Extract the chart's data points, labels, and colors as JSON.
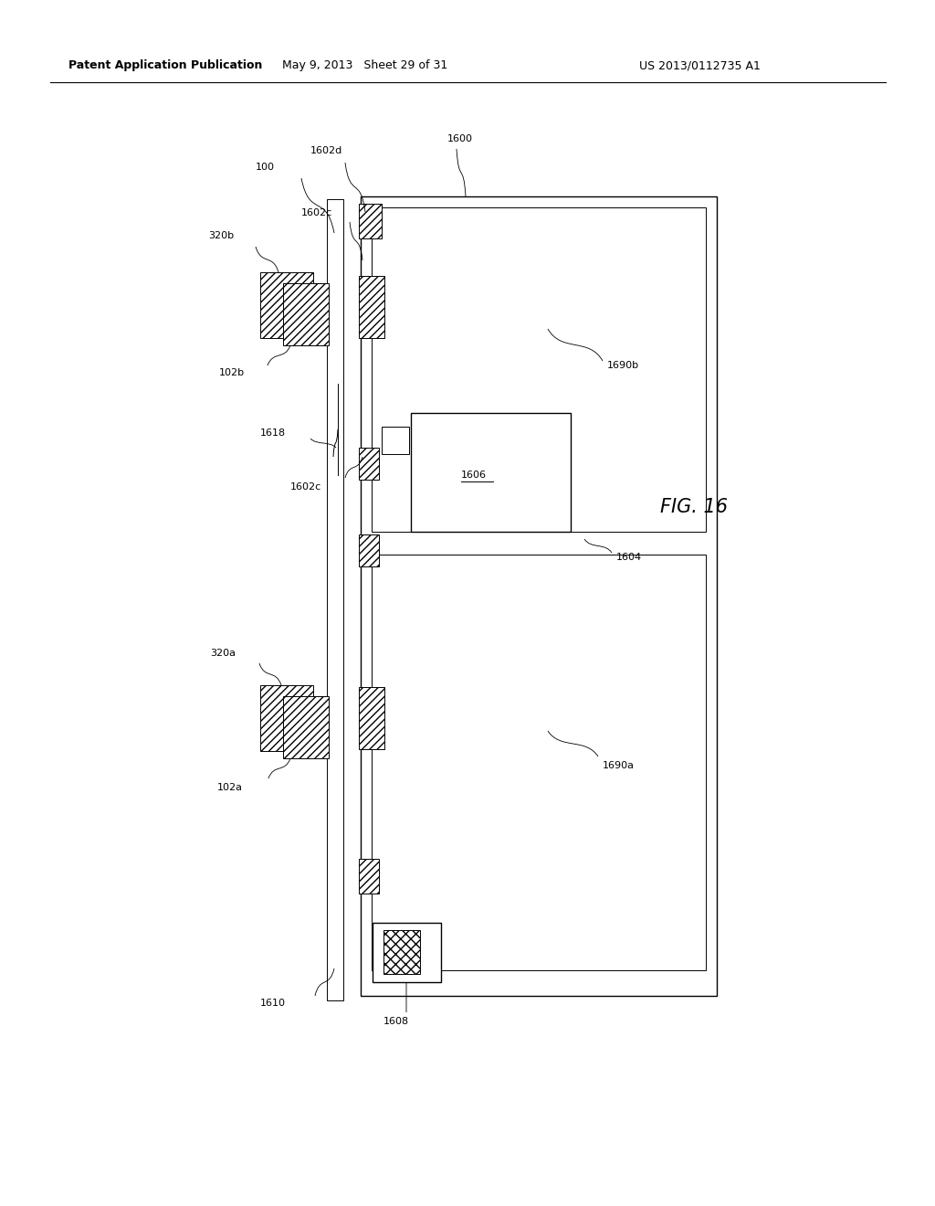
{
  "header_left": "Patent Application Publication",
  "header_center": "May 9, 2013   Sheet 29 of 31",
  "header_right": "US 2013/0112735 A1",
  "bg_color": "#ffffff",
  "fig_label": "FIG. 16",
  "lw_main": 1.0,
  "lw_thin": 0.7,
  "lw_leader": 0.6,
  "fs_label": 8.0,
  "fs_header": 9.0,
  "fs_fig": 15.0
}
